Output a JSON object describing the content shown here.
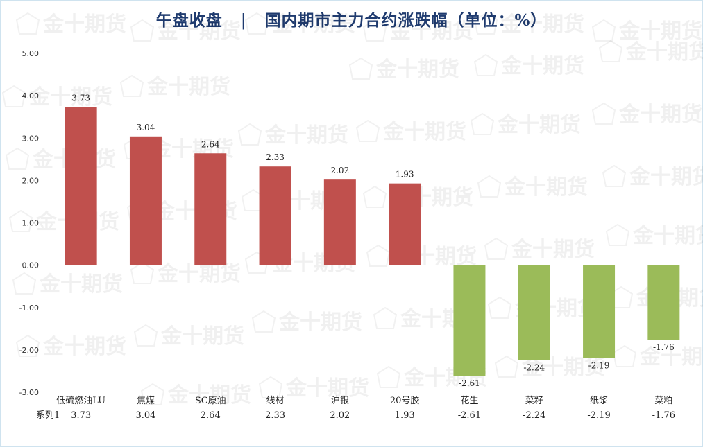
{
  "title": {
    "left": "午盘收盘",
    "separator": "|",
    "right": "国内期市主力合约涨跌幅（单位：%）"
  },
  "watermark": "金十期货",
  "colors": {
    "positive": "#c0504d",
    "negative": "#9bbb59",
    "title": "#1f3b6f"
  },
  "chart_data": {
    "type": "bar",
    "categories": [
      "低硫燃油LU",
      "焦煤",
      "SC原油",
      "线材",
      "沪银",
      "20号胶",
      "花生",
      "菜籽",
      "纸浆",
      "菜粕"
    ],
    "series": [
      {
        "name": "系列1",
        "values": [
          3.73,
          3.04,
          2.64,
          2.33,
          2.02,
          1.93,
          -2.61,
          -2.24,
          -2.19,
          -1.76
        ],
        "labels": [
          "3.73",
          "3.04",
          "2.64",
          "2.33",
          "2.02",
          "1.93",
          "-2.61",
          "-2.24",
          "-2.19",
          "-1.76"
        ]
      }
    ],
    "y_ticks": [
      "5.00",
      "4.00",
      "3.00",
      "2.00",
      "1.00",
      "0.00",
      "-1.00",
      "-2.00",
      "-3.00"
    ],
    "ylim": [
      -3,
      5
    ],
    "grid": false,
    "data_table": true
  }
}
